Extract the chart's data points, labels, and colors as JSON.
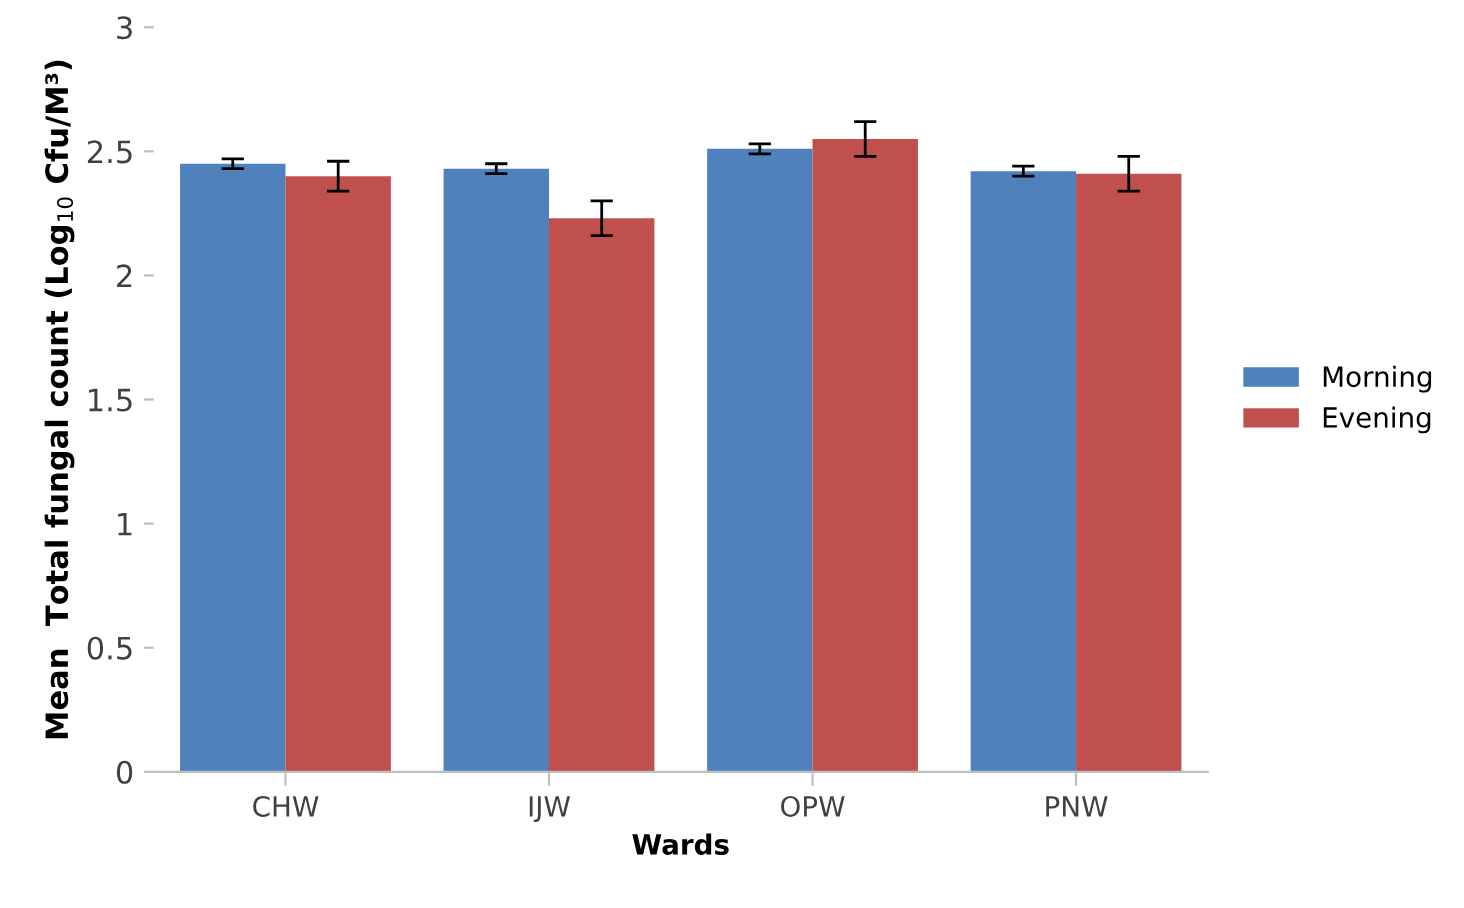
{
  "chart_data": {
    "type": "bar",
    "xlabel": "Wards",
    "ylabel": "Mean  Total fungal count (Log$_{10}$ Cfu/M³)",
    "categories": [
      "CHW",
      "IJW",
      "OPW",
      "PNW"
    ],
    "series": [
      {
        "name": "Morning",
        "color": "#4f81bd",
        "values": [
          2.45,
          2.43,
          2.51,
          2.42
        ],
        "errors": [
          0.02,
          0.02,
          0.02,
          0.02
        ]
      },
      {
        "name": "Evening",
        "color": "#c0504d",
        "values": [
          2.4,
          2.23,
          2.55,
          2.41
        ],
        "errors": [
          0.06,
          0.07,
          0.07,
          0.07
        ]
      }
    ],
    "ylim": [
      0,
      3
    ],
    "yticks": [
      0,
      0.5,
      1,
      1.5,
      2,
      2.5,
      3
    ],
    "grid": false,
    "legend": "right"
  }
}
